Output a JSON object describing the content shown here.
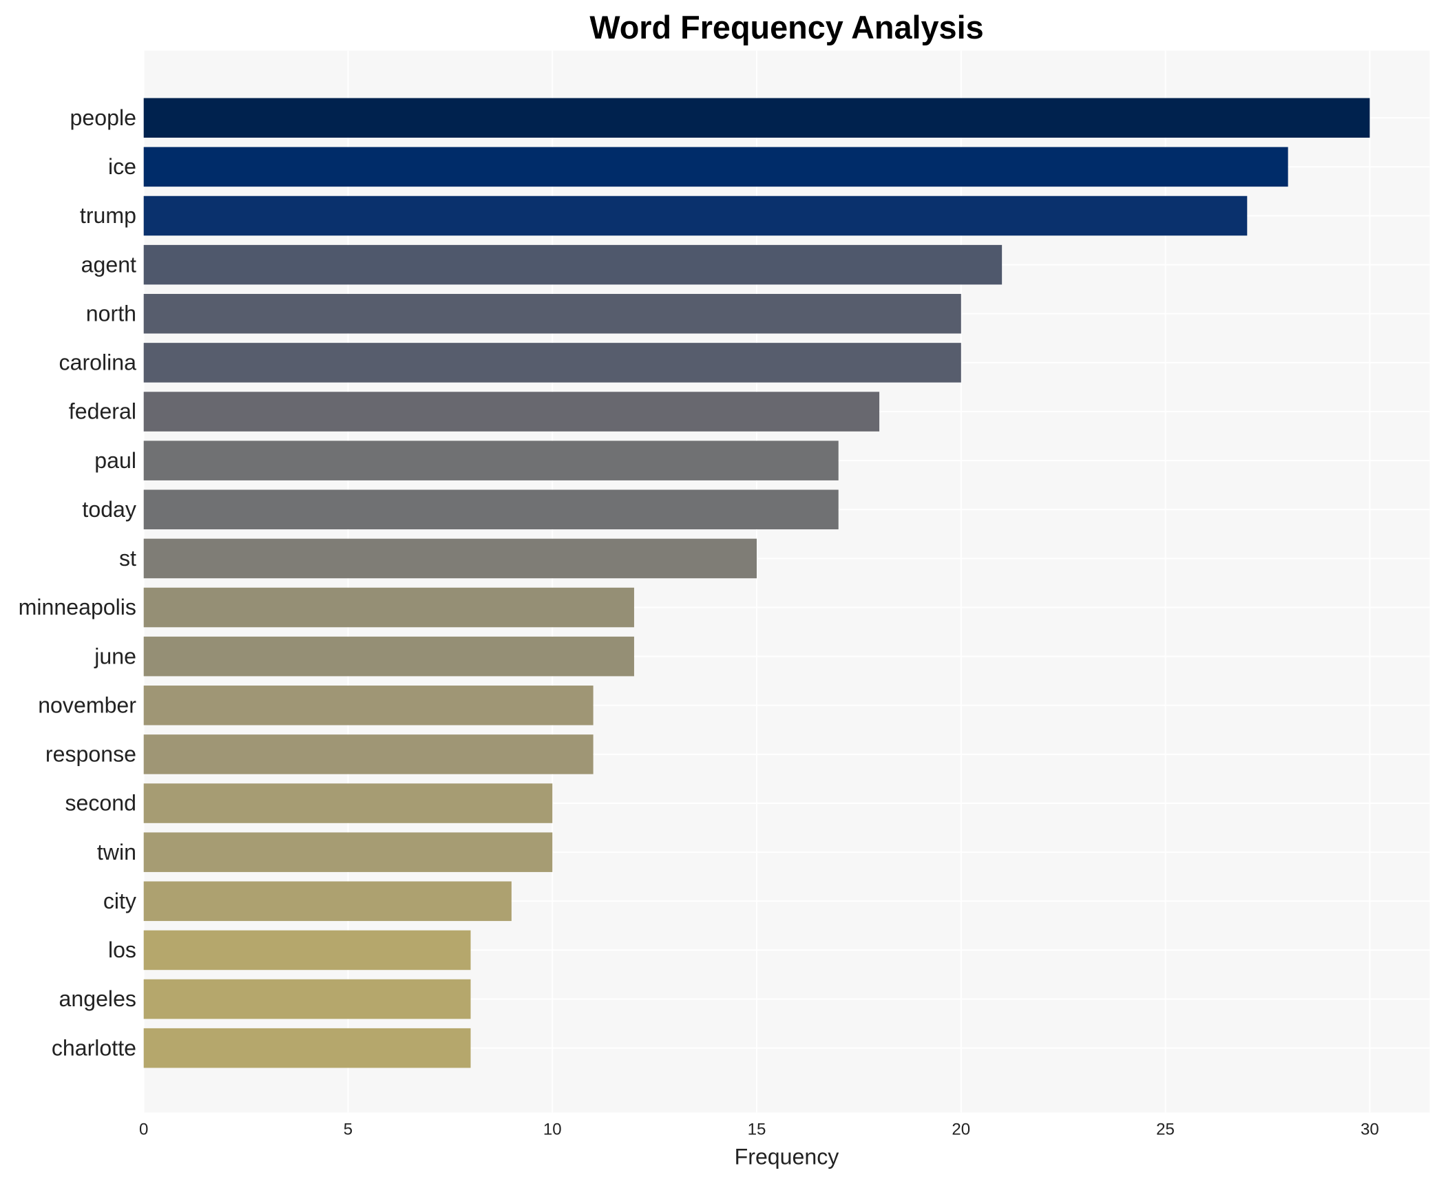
{
  "chart_data": {
    "type": "bar",
    "orientation": "horizontal",
    "title": "Word Frequency Analysis",
    "xlabel": "Frequency",
    "ylabel": "",
    "xlim": [
      0,
      31.5
    ],
    "xticks": [
      0,
      5,
      10,
      15,
      20,
      25,
      30
    ],
    "grid": true,
    "background": "#f7f7f7",
    "categories": [
      "people",
      "ice",
      "trump",
      "agent",
      "north",
      "carolina",
      "federal",
      "paul",
      "today",
      "st",
      "minneapolis",
      "june",
      "november",
      "response",
      "second",
      "twin",
      "city",
      "los",
      "angeles",
      "charlotte"
    ],
    "values": [
      30,
      28,
      27,
      21,
      20,
      20,
      18,
      17,
      17,
      15,
      12,
      12,
      11,
      11,
      10,
      10,
      9,
      8,
      8,
      8
    ],
    "colors": [
      "#00224e",
      "#002c69",
      "#0a316d",
      "#4f586c",
      "#575d6d",
      "#575d6d",
      "#68686f",
      "#707173",
      "#707173",
      "#7f7d76",
      "#958f75",
      "#958f75",
      "#9f9675",
      "#9f9675",
      "#a69c73",
      "#a69c73",
      "#ada170",
      "#b5a76c",
      "#b5a76c",
      "#b5a76c"
    ]
  }
}
